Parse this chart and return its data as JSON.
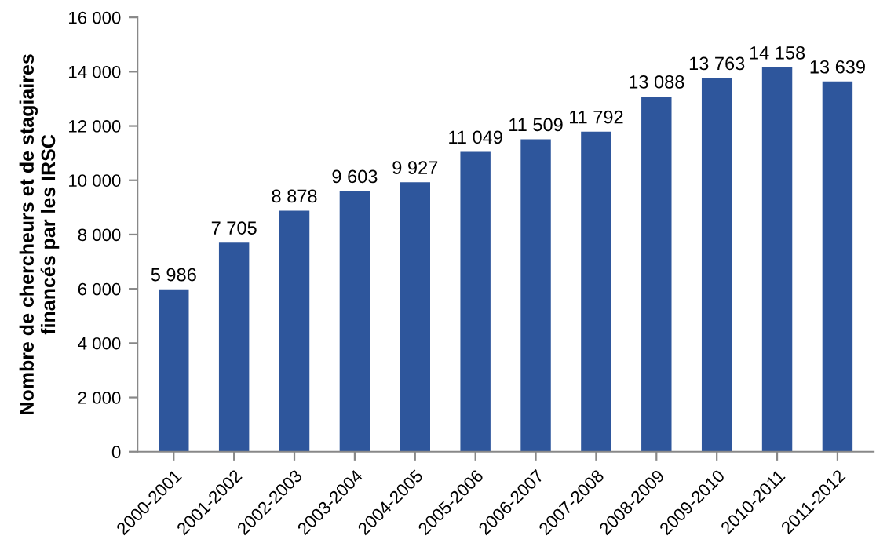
{
  "chart_data": {
    "type": "bar",
    "ylabel": "Nombre de chercheurs et de stagiaires\nfinancés par les IRSC",
    "categories": [
      "2000-2001",
      "2001-2002",
      "2002-2003",
      "2003-2004",
      "2004-2005",
      "2005-2006",
      "2006-2007",
      "2007-2008",
      "2008-2009",
      "2009-2010",
      "2010-2011",
      "2011-2012"
    ],
    "values": [
      5986,
      7705,
      8878,
      9603,
      9927,
      11049,
      11509,
      11792,
      13088,
      13763,
      14158,
      13639
    ],
    "value_labels": [
      "5 986",
      "7 705",
      "8 878",
      "9 603",
      "9 927",
      "11 049",
      "11 509",
      "11 792",
      "13 088",
      "13 763",
      "14 158",
      "13 639"
    ],
    "color": "#2e569c",
    "ylim": [
      0,
      16000
    ],
    "yticks": [
      {
        "value": 0,
        "label": "0"
      },
      {
        "value": 2000,
        "label": "2 000"
      },
      {
        "value": 4000,
        "label": "4 000"
      },
      {
        "value": 6000,
        "label": "6 000"
      },
      {
        "value": 8000,
        "label": "8 000"
      },
      {
        "value": 10000,
        "label": "10 000"
      },
      {
        "value": 12000,
        "label": "12 000"
      },
      {
        "value": 14000,
        "label": "14 000"
      },
      {
        "value": 16000,
        "label": "16 000"
      }
    ],
    "grid": false,
    "legend": false
  }
}
